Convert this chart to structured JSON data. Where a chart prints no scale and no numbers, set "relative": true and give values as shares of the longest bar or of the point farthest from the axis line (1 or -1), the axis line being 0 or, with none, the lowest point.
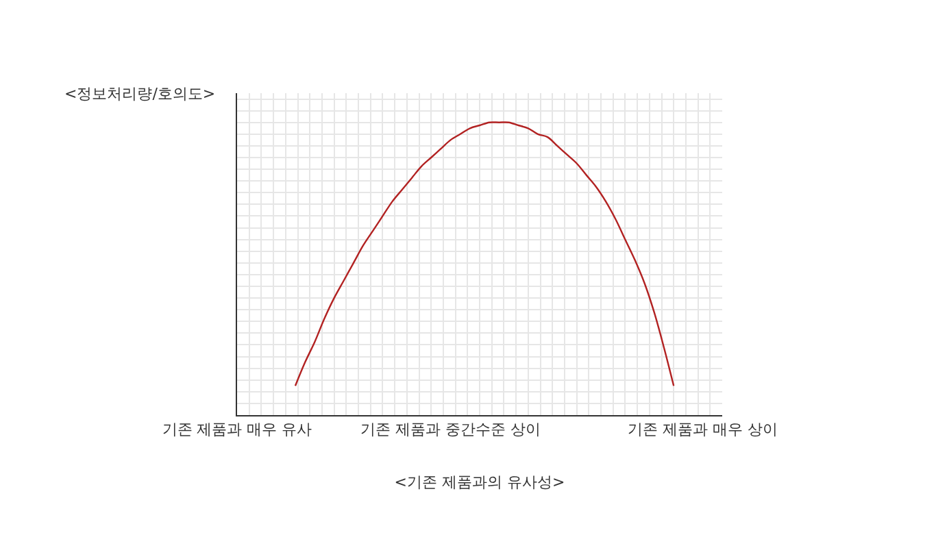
{
  "chart_data": {
    "type": "line",
    "relative": true,
    "ylabel": "<정보처리량/호의도>",
    "xlabel": "<기존 제품과의 유사성>",
    "categories": [
      "기존 제품과 매우 유사",
      null,
      null,
      null,
      null,
      null,
      null,
      null,
      null,
      null,
      null,
      null,
      null,
      null,
      null,
      null,
      null,
      null,
      null,
      null,
      null,
      null,
      "기존 제품과 중간수준 상이",
      null,
      null,
      null,
      null,
      null,
      null,
      null,
      null,
      null,
      null,
      null,
      null,
      null,
      null,
      null,
      null,
      null,
      null,
      null,
      null,
      null,
      null,
      null,
      null,
      null,
      "기존 제품과 매우 상이"
    ],
    "series": [
      {
        "color": "#b22222",
        "values": [
          null,
          null,
          null,
          null,
          null,
          null,
          0.1,
          0.18,
          0.25,
          0.33,
          0.4,
          0.46,
          0.52,
          0.58,
          0.63,
          0.68,
          0.73,
          0.77,
          0.81,
          0.85,
          0.88,
          0.91,
          0.94,
          0.96,
          0.98,
          0.99,
          1,
          1,
          1,
          0.99,
          0.98,
          0.96,
          0.95,
          0.92,
          0.89,
          0.86,
          0.82,
          0.78,
          0.73,
          0.67,
          0.6,
          0.53,
          0.45,
          0.35,
          0.23,
          0.1,
          null,
          null,
          null
        ]
      }
    ],
    "grid": true
  }
}
